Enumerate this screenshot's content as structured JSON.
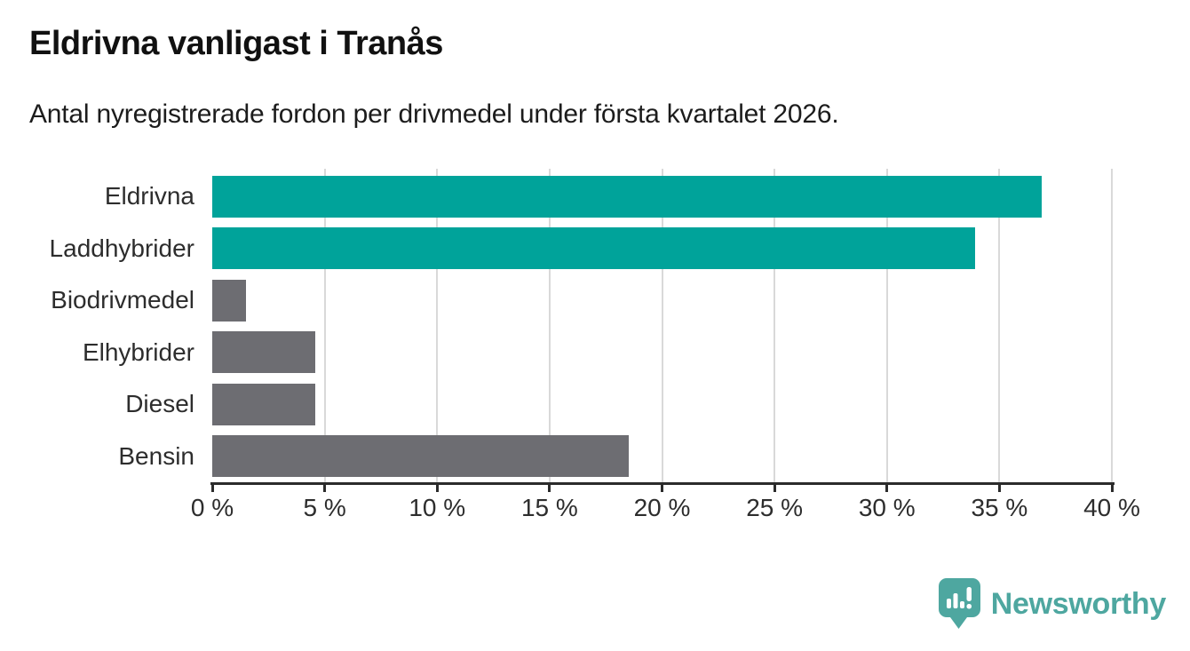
{
  "chart_data": {
    "type": "bar",
    "orientation": "horizontal",
    "title": "Eldrivna vanligast i Tranås",
    "subtitle": "Antal nyregistrerade fordon per drivmedel under första kvartalet 2026.",
    "categories": [
      "Eldrivna",
      "Laddhybrider",
      "Biodrivmedel",
      "Elhybrider",
      "Diesel",
      "Bensin"
    ],
    "values": [
      36.9,
      33.9,
      1.5,
      4.6,
      4.6,
      18.5
    ],
    "unit": "%",
    "xlabel": "",
    "ylabel": "",
    "xlim": [
      0,
      40
    ],
    "xticks": [
      0,
      5,
      10,
      15,
      20,
      25,
      30,
      35,
      40
    ],
    "xtick_suffix": " %",
    "grid": true,
    "legend_position": "none",
    "bar_colors": [
      "#00a39a",
      "#00a39a",
      "#6d6d72",
      "#6d6d72",
      "#6d6d72",
      "#6d6d72"
    ],
    "accent_teal": "#00a39a",
    "neutral_gray": "#6d6d72",
    "gridline_color": "#d9d9d9",
    "axis_color": "#2b2b2b"
  },
  "footer": {
    "brand": "Newsworthy",
    "brand_color": "#4ea7a0"
  }
}
